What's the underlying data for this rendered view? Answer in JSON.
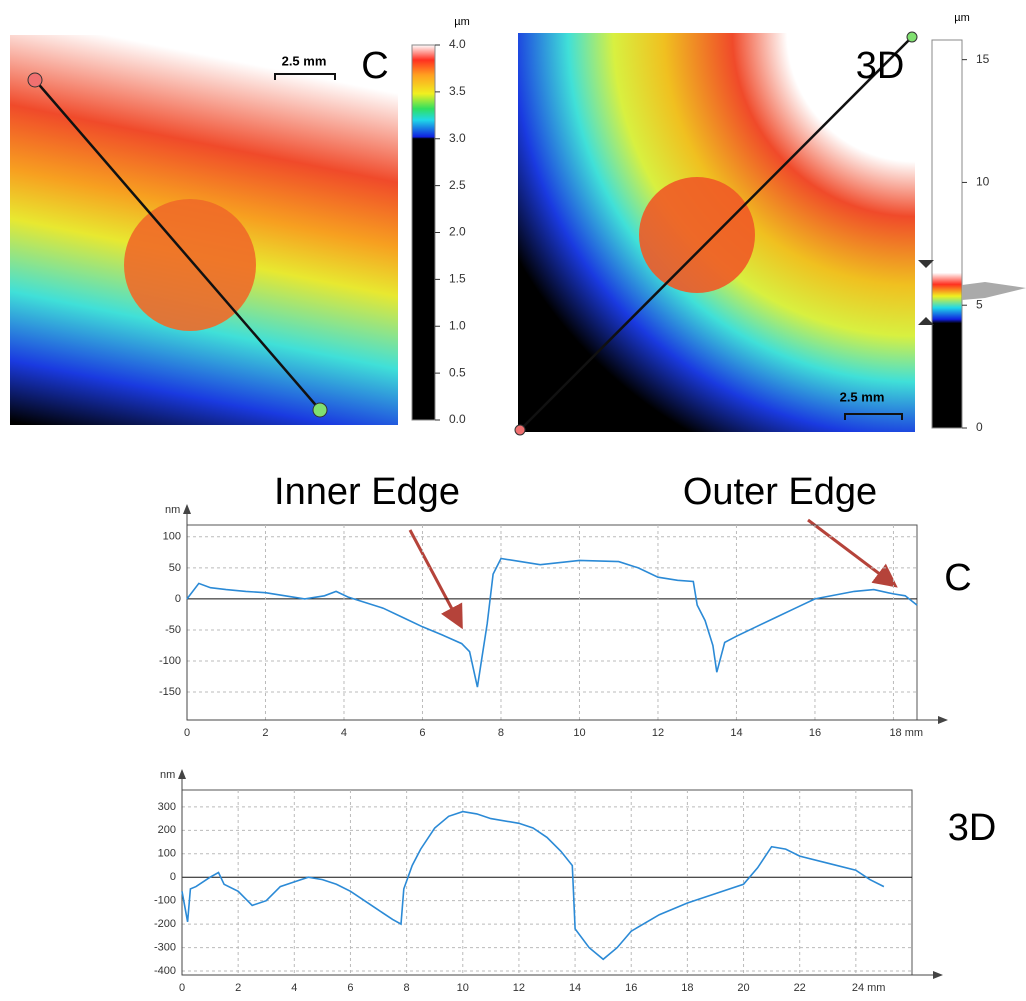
{
  "images": [
    {
      "label": "C",
      "scale_bar": "2.5 mm",
      "colorbar": {
        "unit": "µm",
        "lim": [
          0,
          4
        ],
        "ticks": [
          {
            "value": 0,
            "label": "0.0"
          },
          0.5,
          {
            "value": 1,
            "label": "1.0"
          },
          1.5,
          {
            "value": 2,
            "label": "2.0"
          },
          2.5,
          {
            "value": 3,
            "label": "3.0"
          },
          3.5,
          {
            "value": 4,
            "label": "4.0"
          }
        ]
      }
    },
    {
      "label": "3D",
      "scale_bar": "2.5 mm",
      "colorbar": {
        "unit": "µm",
        "lim": [
          0,
          15.8
        ],
        "ticks": [
          0,
          5,
          10,
          15
        ]
      }
    }
  ],
  "chart_data": [
    {
      "type": "line",
      "ylabel": "nm",
      "side_label": "C",
      "annotations": [
        "Inner Edge",
        "Outer Edge"
      ],
      "color": "#2b8ad6",
      "grid": true,
      "x": [
        0,
        0.3,
        0.6,
        1,
        1.5,
        2,
        2.5,
        3,
        3.5,
        3.8,
        4.1,
        4.5,
        5,
        5.5,
        6,
        6.5,
        7,
        7.2,
        7.4,
        7.5,
        7.65,
        7.8,
        8,
        8.5,
        9,
        10,
        11,
        11.5,
        12,
        12.5,
        12.9,
        13,
        13.2,
        13.4,
        13.5,
        13.7,
        14,
        14.5,
        15,
        15.5,
        16,
        17,
        17.5,
        18,
        18.3,
        18.6
      ],
      "values": [
        0,
        25,
        18,
        15,
        12,
        10,
        5,
        0,
        5,
        12,
        3,
        -5,
        -15,
        -30,
        -45,
        -58,
        -72,
        -85,
        -142,
        -100,
        -40,
        40,
        65,
        60,
        55,
        62,
        60,
        50,
        35,
        30,
        28,
        -10,
        -35,
        -75,
        -118,
        -70,
        -60,
        -45,
        -30,
        -15,
        0,
        12,
        15,
        8,
        5,
        -10
      ],
      "xlim": [
        0,
        18.6
      ],
      "ylim": [
        -195,
        119
      ],
      "xticks": [
        0,
        2,
        4,
        6,
        8,
        10,
        12,
        14,
        16,
        {
          "value": 18,
          "label": "18 mm"
        }
      ],
      "yticks": [
        -150,
        -100,
        -50,
        0,
        50,
        100
      ]
    },
    {
      "type": "line",
      "ylabel": "nm",
      "side_label": "3D",
      "color": "#2b8ad6",
      "grid": true,
      "x": [
        0,
        0.2,
        0.3,
        0.5,
        1,
        1.3,
        1.5,
        2,
        2.5,
        3,
        3.5,
        4,
        4.5,
        5,
        5.5,
        6,
        6.5,
        7,
        7.5,
        7.8,
        7.9,
        8.2,
        8.5,
        9,
        9.5,
        10,
        10.5,
        11,
        12,
        12.5,
        13,
        13.5,
        13.9,
        14,
        14.5,
        15,
        15.5,
        16,
        17,
        18,
        19,
        20,
        20.5,
        21,
        21.5,
        22,
        23,
        24,
        24.5,
        25
      ],
      "values": [
        -60,
        -190,
        -50,
        -40,
        0,
        20,
        -30,
        -60,
        -120,
        -100,
        -40,
        -20,
        0,
        -10,
        -30,
        -60,
        -100,
        -140,
        -180,
        -200,
        -50,
        50,
        120,
        210,
        260,
        280,
        270,
        250,
        230,
        210,
        170,
        110,
        50,
        -220,
        -300,
        -350,
        -300,
        -230,
        -160,
        -110,
        -70,
        -30,
        40,
        130,
        120,
        90,
        60,
        30,
        -10,
        -40
      ],
      "xlim": [
        0,
        26
      ],
      "ylim": [
        -417,
        372
      ],
      "xticks": [
        0,
        2,
        4,
        6,
        8,
        10,
        12,
        14,
        16,
        18,
        20,
        22,
        {
          "value": 24,
          "label": "24 mm"
        }
      ],
      "yticks": [
        -400,
        -300,
        -200,
        -100,
        0,
        100,
        200,
        300
      ]
    }
  ]
}
